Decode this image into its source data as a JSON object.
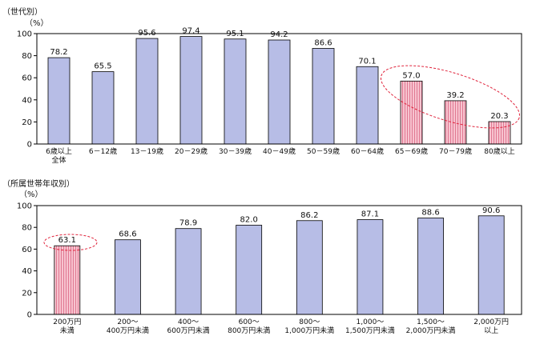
{
  "chart_data": [
    {
      "type": "bar",
      "title": "（世代別）",
      "ylabel": "（%）",
      "ylim": [
        0,
        100
      ],
      "yticks": [
        0,
        20,
        40,
        60,
        80,
        100
      ],
      "grid": false,
      "categories": [
        [
          "6歳以上",
          "全体"
        ],
        [
          "6－12歳"
        ],
        [
          "13－19歳"
        ],
        [
          "20－29歳"
        ],
        [
          "30－39歳"
        ],
        [
          "40－49歳"
        ],
        [
          "50－59歳"
        ],
        [
          "60－64歳"
        ],
        [
          "65－69歳"
        ],
        [
          "70－79歳"
        ],
        [
          "80歳以上"
        ]
      ],
      "values": [
        78.2,
        65.5,
        95.6,
        97.4,
        95.1,
        94.2,
        86.6,
        70.1,
        57.0,
        39.2,
        20.3
      ],
      "value_labels": [
        "78.2",
        "65.5",
        "95.6",
        "97.4",
        "95.1",
        "94.2",
        "86.6",
        "70.1",
        "57.0",
        "39.2",
        "20.3"
      ],
      "highlighted": [
        8,
        9,
        10
      ],
      "colors": {
        "normal": "#b7bde6",
        "highlight": "#f7c3cf",
        "highlight_stripe": "#d9607e",
        "ellipse": "#e0243c"
      }
    },
    {
      "type": "bar",
      "title": "（所属世帯年収別）",
      "ylabel": "（%）",
      "ylim": [
        0,
        100
      ],
      "yticks": [
        0,
        20,
        40,
        60,
        80,
        100
      ],
      "grid": false,
      "categories": [
        [
          "200万円",
          "未満"
        ],
        [
          "200～",
          "400万円未満"
        ],
        [
          "400～",
          "600万円未満"
        ],
        [
          "600～",
          "800万円未満"
        ],
        [
          "800～",
          "1,000万円未満"
        ],
        [
          "1,000～",
          "1,500万円未満"
        ],
        [
          "1,500～",
          "2,000万円未満"
        ],
        [
          "2,000万円",
          "以上"
        ]
      ],
      "values": [
        63.1,
        68.6,
        78.9,
        82.0,
        86.2,
        87.1,
        88.6,
        90.6
      ],
      "value_labels": [
        "63.1",
        "68.6",
        "78.9",
        "82.0",
        "86.2",
        "87.1",
        "88.6",
        "90.6"
      ],
      "highlighted": [
        0
      ],
      "colors": {
        "normal": "#b7bde6",
        "highlight": "#f7c3cf",
        "highlight_stripe": "#d9607e",
        "ellipse": "#e0243c"
      }
    }
  ]
}
